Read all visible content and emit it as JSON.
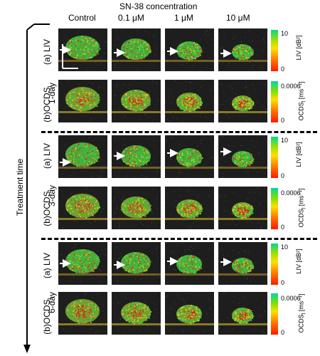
{
  "header": {
    "title": "SN-38 concentration"
  },
  "columns": [
    "Control",
    "0.1 μM",
    "1 μM",
    "10 μM"
  ],
  "axis": {
    "label": "Treatment time"
  },
  "days": [
    "1-day",
    "3-day",
    "6-day"
  ],
  "row_labels": {
    "liv": "(a) LIV",
    "ocds": "(b)OCDS",
    "ocds_sub": "l"
  },
  "colorbars": {
    "liv": {
      "max": "10",
      "min": "0",
      "label": "LIV",
      "unit": "[dB²]"
    },
    "ocds": {
      "max": "0.0006",
      "min": "0",
      "label": "OCDS",
      "label_sub": "l",
      "unit": "[ms⁻¹]"
    }
  },
  "colors": {
    "low": "#ff1a00",
    "mid": "#ffe000",
    "high": "#00d88a",
    "background": "#1b1b1b"
  }
}
